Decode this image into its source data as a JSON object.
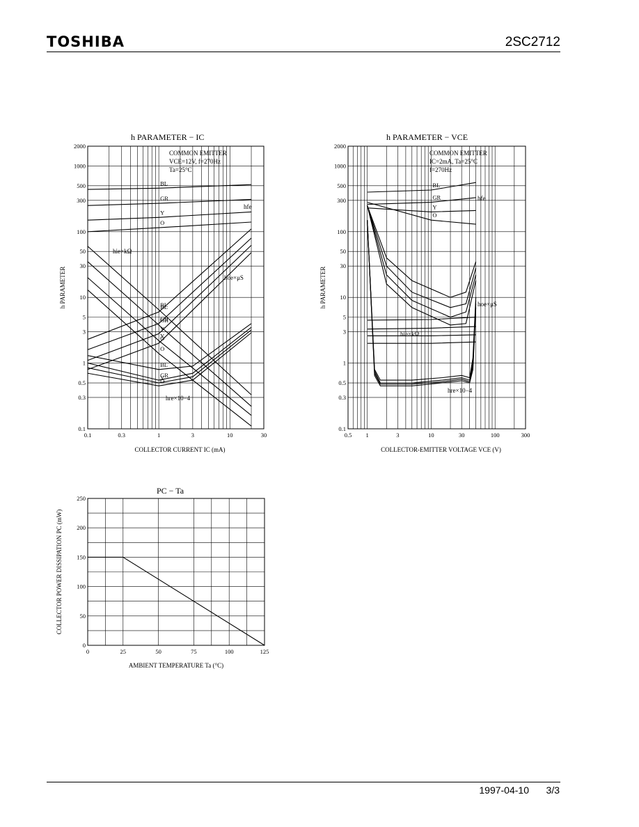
{
  "header": {
    "brand": "TOSHIBA",
    "part_number": "2SC2712"
  },
  "footer": {
    "date": "1997-04-10",
    "page": "3/3"
  },
  "chart_data": [
    {
      "type": "line",
      "title": "h PARAMETER − IC",
      "xlabel": "COLLECTOR CURRENT IC (mA)",
      "ylabel": "h PARAMETER",
      "xscale": "log",
      "yscale": "log",
      "xlim": [
        0.1,
        30
      ],
      "ylim": [
        0.1,
        2000
      ],
      "x_ticks": [
        "0.1",
        "0.3",
        "1",
        "3",
        "10",
        "30"
      ],
      "y_ticks": [
        "0.1",
        "0.3",
        "0.5",
        "1",
        "3",
        "5",
        "10",
        "30",
        "50",
        "100",
        "300",
        "500",
        "1000",
        "2000"
      ],
      "conditions": [
        "COMMON EMITTER",
        "VCE=12V, f=270Hz",
        "Ta=25°C"
      ],
      "annotations": [
        "hfe",
        "hie×kΩ",
        "hoe×μS",
        "hre×10−4"
      ],
      "series": [
        {
          "name": "hfe BL",
          "x": [
            0.1,
            1,
            20
          ],
          "y": [
            440,
            460,
            520
          ]
        },
        {
          "name": "hfe GR",
          "x": [
            0.1,
            1,
            20
          ],
          "y": [
            250,
            270,
            310
          ]
        },
        {
          "name": "hfe Y",
          "x": [
            0.1,
            1,
            20
          ],
          "y": [
            150,
            165,
            200
          ]
        },
        {
          "name": "hfe O",
          "x": [
            0.1,
            1,
            20
          ],
          "y": [
            100,
            115,
            140
          ]
        },
        {
          "name": "hie BL",
          "x": [
            0.1,
            1,
            20
          ],
          "y": [
            60,
            6.5,
            0.33
          ]
        },
        {
          "name": "hie GR",
          "x": [
            0.1,
            1,
            20
          ],
          "y": [
            35,
            3.8,
            0.22
          ]
        },
        {
          "name": "hie Y",
          "x": [
            0.1,
            1,
            20
          ],
          "y": [
            20,
            2.2,
            0.16
          ]
        },
        {
          "name": "hie O",
          "x": [
            0.1,
            1,
            20
          ],
          "y": [
            13,
            1.4,
            0.11
          ]
        },
        {
          "name": "hoe BL",
          "x": [
            0.1,
            1,
            20
          ],
          "y": [
            2.3,
            6,
            110
          ]
        },
        {
          "name": "hoe GR",
          "x": [
            0.1,
            1,
            20
          ],
          "y": [
            1.6,
            4,
            80
          ]
        },
        {
          "name": "hoe Y",
          "x": [
            0.1,
            1,
            20
          ],
          "y": [
            1.1,
            2.8,
            62
          ]
        },
        {
          "name": "hoe O",
          "x": [
            0.1,
            1,
            20
          ],
          "y": [
            0.8,
            2,
            48
          ]
        },
        {
          "name": "hre BL",
          "x": [
            0.1,
            1,
            3,
            20
          ],
          "y": [
            1.3,
            0.8,
            0.9,
            4
          ]
        },
        {
          "name": "hre GR",
          "x": [
            0.1,
            1,
            3,
            20
          ],
          "y": [
            1.0,
            0.55,
            0.7,
            3.5
          ]
        },
        {
          "name": "hre Y",
          "x": [
            0.1,
            1,
            3,
            20
          ],
          "y": [
            0.85,
            0.5,
            0.62,
            3.2
          ]
        },
        {
          "name": "hre O",
          "x": [
            0.1,
            1,
            3,
            20
          ],
          "y": [
            0.7,
            0.45,
            0.55,
            2.9
          ]
        }
      ]
    },
    {
      "type": "line",
      "title": "h PARAMETER − VCE",
      "xlabel": "COLLECTOR-EMITTER VOLTAGE VCE (V)",
      "ylabel": "h PARAMETER",
      "xscale": "log",
      "yscale": "log",
      "xlim": [
        0.5,
        300
      ],
      "ylim": [
        0.1,
        2000
      ],
      "x_ticks": [
        "0.5",
        "1",
        "3",
        "10",
        "30",
        "100",
        "300"
      ],
      "y_ticks": [
        "0.1",
        "0.3",
        "0.5",
        "1",
        "3",
        "5",
        "10",
        "30",
        "50",
        "100",
        "300",
        "500",
        "1000",
        "2000"
      ],
      "conditions": [
        "COMMON EMITTER",
        "IC=2mA, Ta=25°C",
        "f=270Hz"
      ],
      "annotations": [
        "hfe",
        "hoe×μS",
        "hie×kΩ",
        "hre×10−4"
      ],
      "series": [
        {
          "name": "hfe BL",
          "x": [
            1,
            10,
            50
          ],
          "y": [
            400,
            430,
            560
          ]
        },
        {
          "name": "hfe GR",
          "x": [
            1,
            10,
            50
          ],
          "y": [
            260,
            280,
            330
          ]
        },
        {
          "name": "hfe Y",
          "x": [
            1,
            10,
            50
          ],
          "y": [
            230,
            200,
            210
          ]
        },
        {
          "name": "hfe O",
          "x": [
            1,
            10,
            50
          ],
          "y": [
            280,
            150,
            130
          ]
        }
      ]
    },
    {
      "type": "line",
      "title": "PC − Ta",
      "xlabel": "AMBIENT TEMPERATURE Ta (°C)",
      "ylabel": "COLLECTOR POWER DISSIPATION PC (mW)",
      "xlim": [
        0,
        125
      ],
      "ylim": [
        0,
        250
      ],
      "x_ticks": [
        "0",
        "25",
        "50",
        "75",
        "100",
        "125"
      ],
      "y_ticks": [
        "0",
        "50",
        "100",
        "150",
        "200",
        "250"
      ],
      "series": [
        {
          "x": [
            0,
            25,
            125
          ],
          "y": [
            150,
            150,
            0
          ]
        }
      ]
    }
  ]
}
